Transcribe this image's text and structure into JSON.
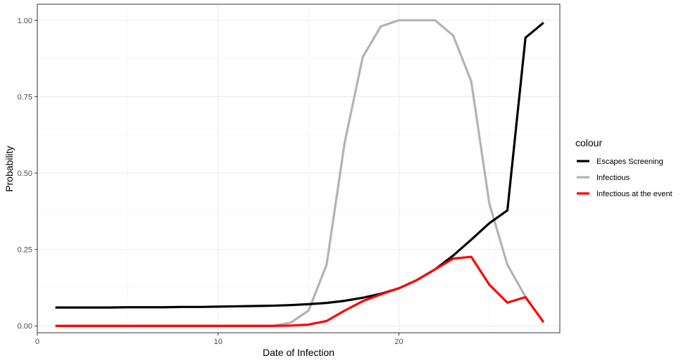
{
  "chart_data": {
    "type": "line",
    "xlabel": "Date of Infection",
    "ylabel": "Probability",
    "xlim": [
      0,
      28.9
    ],
    "ylim": [
      -0.0225,
      1.0525
    ],
    "x_ticks": [
      0,
      10,
      20
    ],
    "y_ticks": [
      0.0,
      0.25,
      0.5,
      0.75,
      1.0
    ],
    "y_tick_labels": [
      "0.00",
      "0.25",
      "0.50",
      "0.75",
      "1.00"
    ],
    "grid": true,
    "legend": {
      "title": "colour",
      "placement": "right"
    },
    "series": [
      {
        "name": "Escapes Screening",
        "color": "#000000",
        "x": [
          1,
          2,
          3,
          4,
          5,
          6,
          7,
          8,
          9,
          10,
          11,
          12,
          13,
          14,
          15,
          16,
          17,
          18,
          19,
          20,
          21,
          22,
          23,
          24,
          25,
          26,
          27,
          28
        ],
        "y": [
          0.06,
          0.06,
          0.06,
          0.06,
          0.061,
          0.061,
          0.061,
          0.062,
          0.062,
          0.063,
          0.064,
          0.065,
          0.066,
          0.068,
          0.071,
          0.075,
          0.082,
          0.092,
          0.105,
          0.123,
          0.15,
          0.185,
          0.23,
          0.282,
          0.336,
          0.378,
          0.943,
          0.992
        ]
      },
      {
        "name": "Infectious",
        "color": "#b3b3b3",
        "x": [
          1,
          2,
          3,
          4,
          5,
          6,
          7,
          8,
          9,
          10,
          11,
          12,
          13,
          14,
          15,
          16,
          17,
          18,
          19,
          20,
          21,
          22,
          23,
          24,
          25,
          26,
          27,
          28
        ],
        "y": [
          0,
          0,
          0,
          0,
          0,
          0,
          0,
          0,
          0,
          0,
          0,
          0,
          0,
          0.01,
          0.05,
          0.2,
          0.6,
          0.88,
          0.98,
          1.0,
          1.0,
          1.0,
          0.95,
          0.8,
          0.4,
          0.2,
          0.095,
          0.012
        ]
      },
      {
        "name": "Infectious at the event",
        "color": "#ff0000",
        "x": [
          1,
          2,
          3,
          4,
          5,
          6,
          7,
          8,
          9,
          10,
          11,
          12,
          13,
          14,
          15,
          16,
          17,
          18,
          19,
          20,
          21,
          22,
          23,
          24,
          25,
          26,
          27,
          28
        ],
        "y": [
          0,
          0,
          0,
          0,
          0,
          0,
          0,
          0,
          0,
          0,
          0,
          0,
          0,
          0.001,
          0.004,
          0.016,
          0.05,
          0.081,
          0.103,
          0.123,
          0.15,
          0.185,
          0.22,
          0.226,
          0.135,
          0.076,
          0.094,
          0.012
        ]
      }
    ]
  }
}
